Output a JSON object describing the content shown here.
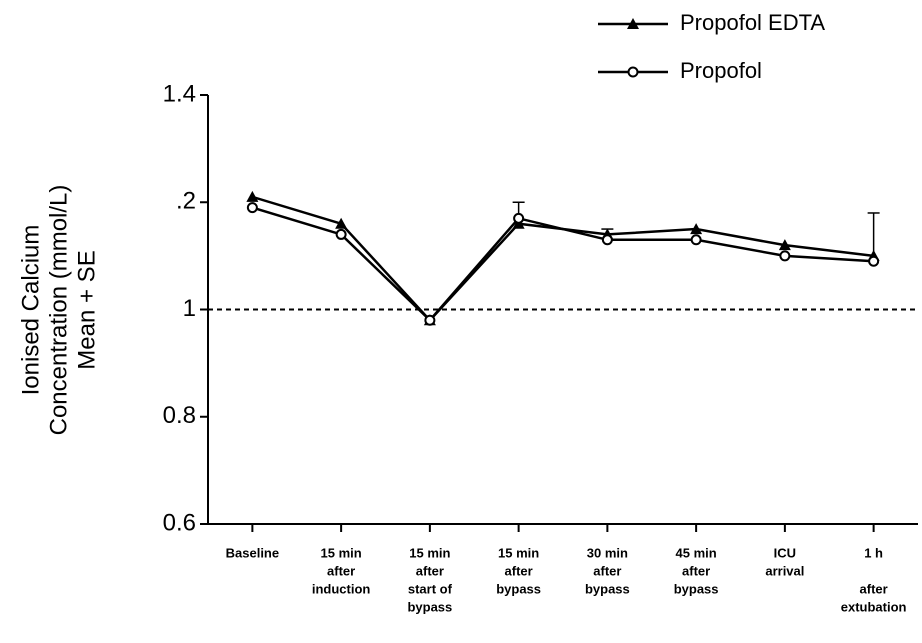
{
  "chart_data": {
    "type": "line",
    "ylabel": [
      "Ionised Calcium",
      "Concentration (mmol/L)",
      "Mean + SE"
    ],
    "categories": [
      [
        "Baseline"
      ],
      [
        "15 min",
        "after",
        "induction"
      ],
      [
        "15 min",
        "after",
        "start of",
        "bypass"
      ],
      [
        "15 min",
        "after",
        "bypass"
      ],
      [
        "30 min",
        "after",
        "bypass"
      ],
      [
        "45 min",
        "after",
        "bypass"
      ],
      [
        "ICU",
        "arrival"
      ],
      [
        "1 h",
        "",
        "after",
        "extubation"
      ]
    ],
    "series": [
      {
        "name": "Propofol EDTA",
        "color": "#000000",
        "marker": "triangle",
        "values": [
          1.21,
          1.16,
          0.98,
          1.16,
          1.14,
          1.15,
          1.12,
          1.1
        ],
        "errors": [
          null,
          null,
          null,
          null,
          0.01,
          null,
          null,
          0.08
        ]
      },
      {
        "name": "Propofol",
        "color": "#000000",
        "marker": "circle",
        "values": [
          1.19,
          1.14,
          0.98,
          1.17,
          1.13,
          1.13,
          1.1,
          1.09
        ],
        "errors": [
          null,
          null,
          null,
          0.03,
          null,
          null,
          null,
          null
        ]
      }
    ],
    "ylim": [
      0.6,
      1.4
    ],
    "yticks": [
      0.6,
      0.8,
      1,
      {
        "value": 1.2,
        "label": ".2"
      },
      1.4
    ],
    "reference_line": 1,
    "legend": "top-right"
  }
}
